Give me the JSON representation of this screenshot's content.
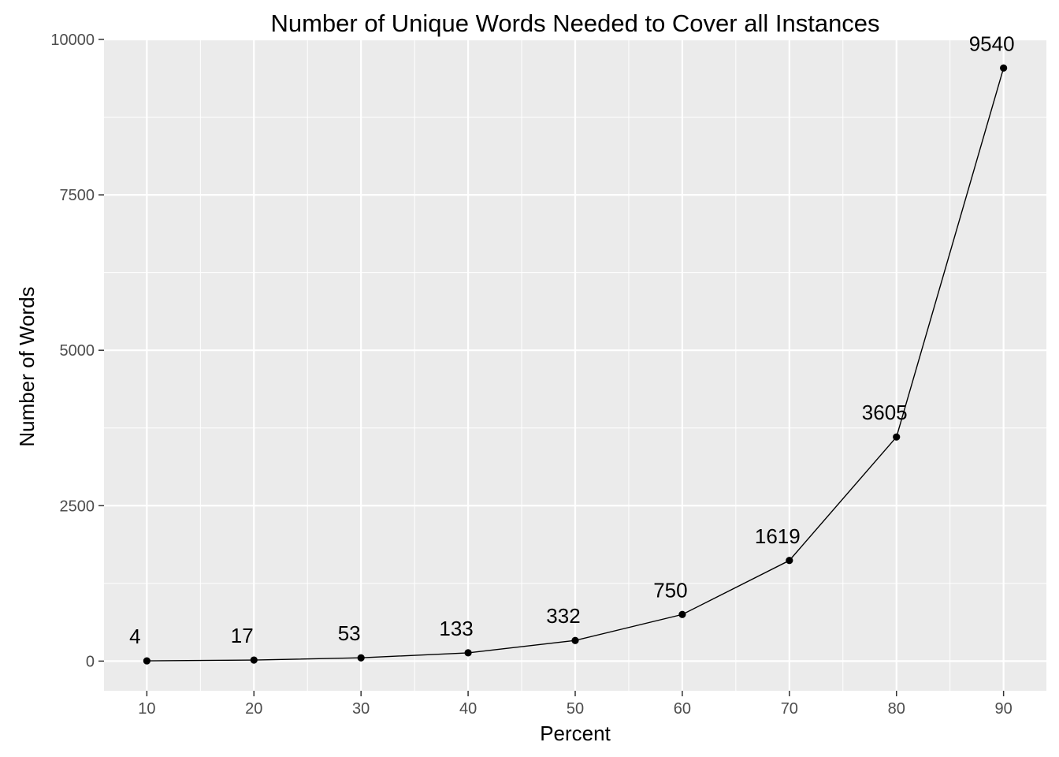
{
  "chart_data": {
    "type": "line",
    "title": "Number of Unique Words Needed to Cover all Instances",
    "xlabel": "Percent",
    "ylabel": "Number of Words",
    "x": [
      10,
      20,
      30,
      40,
      50,
      60,
      70,
      80,
      90
    ],
    "y": [
      4,
      17,
      53,
      133,
      332,
      750,
      1619,
      3605,
      9540
    ],
    "data_labels": [
      "4",
      "17",
      "53",
      "133",
      "332",
      "750",
      "1619",
      "3605",
      "9540"
    ],
    "xticks": [
      10,
      20,
      30,
      40,
      50,
      60,
      70,
      80,
      90
    ],
    "xtick_labels": [
      "10",
      "20",
      "30",
      "40",
      "50",
      "60",
      "70",
      "80",
      "90"
    ],
    "yticks": [
      0,
      2500,
      5000,
      7500,
      10000
    ],
    "ytick_labels": [
      "0",
      "2500",
      "5000",
      "7500",
      "10000"
    ],
    "xlim": [
      6,
      94
    ],
    "ylim": [
      -477,
      10000
    ],
    "grid": true,
    "legend": "none",
    "colors": {
      "panel": "#ebebeb",
      "grid_major": "#ffffff",
      "line": "#000000",
      "point": "#000000",
      "tick": "#333333"
    }
  }
}
